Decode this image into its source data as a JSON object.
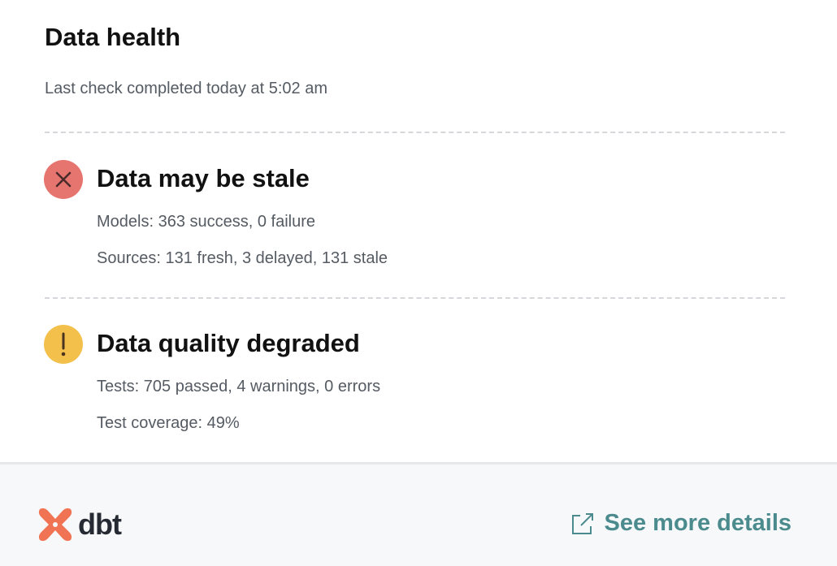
{
  "header": {
    "title": "Data health",
    "subtitle": "Last check completed today at 5:02 am"
  },
  "sections": [
    {
      "status": "error",
      "icon": "x-circle-icon",
      "color": "#e6756f",
      "title": "Data may be stale",
      "details": [
        "Models: 363 success, 0 failure",
        "Sources: 131 fresh, 3 delayed, 131 stale"
      ]
    },
    {
      "status": "warning",
      "icon": "exclamation-circle-icon",
      "color": "#f3c14b",
      "title": "Data quality degraded",
      "details": [
        "Tests: 705 passed, 4 warnings, 0 errors",
        "Test coverage: 49%"
      ]
    }
  ],
  "footer": {
    "logo": "dbt",
    "link_label": "See more details",
    "link_color": "#4b8b8d",
    "brand_color": "#f07354"
  }
}
